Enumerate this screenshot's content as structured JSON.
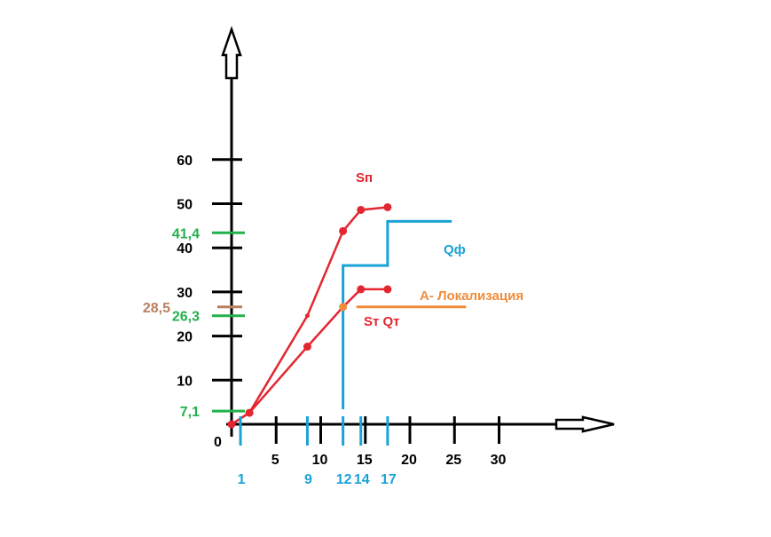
{
  "chart_data": {
    "type": "line",
    "origin_label": "0",
    "x_tick_labels": [
      "5",
      "10",
      "15",
      "20",
      "25",
      "30"
    ],
    "y_tick_labels": [
      "10",
      "20",
      "30",
      "40",
      "50",
      "60"
    ],
    "x_marks": [
      {
        "value": 1,
        "label": "1"
      },
      {
        "value": 8.5,
        "label": "9"
      },
      {
        "value": 12.5,
        "label": "12"
      },
      {
        "value": 14.5,
        "label": "14"
      },
      {
        "value": 17.5,
        "label": "17"
      }
    ],
    "y_marks_green": [
      {
        "value": 3,
        "label": "7,1"
      },
      {
        "value": 24.6,
        "label": "26,3"
      },
      {
        "value": 43.4,
        "label": "41,4"
      }
    ],
    "y_mark_brown": {
      "value": 26.6,
      "label": "28,5"
    },
    "series": [
      {
        "name": "Sп",
        "points": [
          [
            0,
            0
          ],
          [
            2,
            2.6
          ],
          [
            8.5,
            24.6
          ],
          [
            12.5,
            43.8
          ],
          [
            14.5,
            48.6
          ],
          [
            17.5,
            49.2
          ]
        ],
        "dots": [
          0,
          1,
          3,
          4,
          5
        ]
      },
      {
        "name": "Sт Qт",
        "points": [
          [
            0,
            0
          ],
          [
            2,
            2.6
          ],
          [
            8.5,
            17.6
          ],
          [
            12.5,
            26.6
          ],
          [
            14.5,
            30.6
          ],
          [
            17.5,
            30.6
          ]
        ],
        "dots": [
          2,
          4,
          5
        ]
      }
    ],
    "q_phi": {
      "name": "Qф",
      "points": [
        [
          12.5,
          3.4
        ],
        [
          12.5,
          36
        ],
        [
          17.5,
          36
        ],
        [
          17.5,
          46
        ],
        [
          24.7,
          46
        ]
      ]
    },
    "localization": {
      "label": "А- Локализация",
      "point": [
        12.5,
        26.6
      ],
      "line": [
        [
          14,
          26.6
        ],
        [
          26.3,
          26.6
        ]
      ]
    },
    "colors": {
      "axis": "#000000",
      "series_red": "#e3262f",
      "q_phi": "#1aa3d6",
      "green": "#22b14c",
      "orange": "#f08c3a",
      "brown": "#b9805f"
    }
  }
}
